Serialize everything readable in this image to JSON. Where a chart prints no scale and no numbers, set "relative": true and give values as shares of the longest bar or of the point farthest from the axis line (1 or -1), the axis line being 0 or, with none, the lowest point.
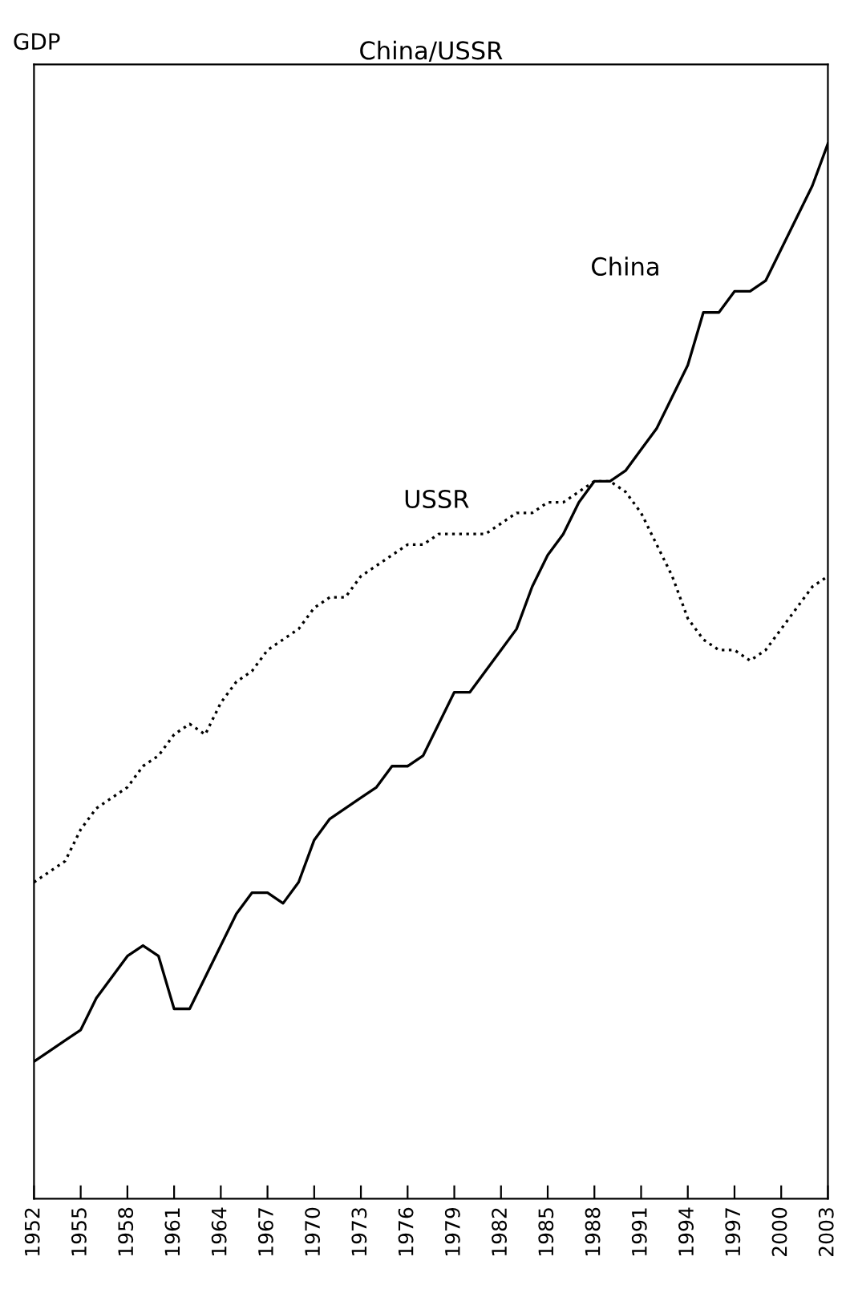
{
  "chart_data": {
    "type": "line",
    "title": "China/USSR",
    "ylabel": "GDP",
    "relative": true,
    "x": [
      1952,
      1953,
      1954,
      1955,
      1956,
      1957,
      1958,
      1959,
      1960,
      1961,
      1962,
      1963,
      1964,
      1965,
      1966,
      1967,
      1968,
      1969,
      1970,
      1971,
      1972,
      1973,
      1974,
      1975,
      1976,
      1977,
      1978,
      1979,
      1980,
      1981,
      1982,
      1983,
      1984,
      1985,
      1986,
      1987,
      1988,
      1989,
      1990,
      1991,
      1992,
      1993,
      1994,
      1995,
      1996,
      1997,
      1998,
      1999,
      2000,
      2001,
      2002,
      2003
    ],
    "xlim": [
      1952,
      2003
    ],
    "xticks": [
      1952,
      1955,
      1958,
      1961,
      1964,
      1967,
      1970,
      1973,
      1976,
      1979,
      1982,
      1985,
      1988,
      1991,
      1994,
      1997,
      2000,
      2003
    ],
    "grid": false,
    "legend": false,
    "series": [
      {
        "name": "China",
        "color": "#000000",
        "line_style": "solid",
        "values": [
          0.13,
          0.14,
          0.15,
          0.16,
          0.19,
          0.21,
          0.23,
          0.24,
          0.23,
          0.18,
          0.18,
          0.21,
          0.24,
          0.27,
          0.29,
          0.29,
          0.28,
          0.3,
          0.34,
          0.36,
          0.37,
          0.38,
          0.39,
          0.41,
          0.41,
          0.42,
          0.45,
          0.48,
          0.48,
          0.5,
          0.52,
          0.54,
          0.58,
          0.61,
          0.63,
          0.66,
          0.68,
          0.68,
          0.69,
          0.71,
          0.73,
          0.76,
          0.79,
          0.84,
          0.84,
          0.86,
          0.86,
          0.87,
          0.9,
          0.93,
          0.96,
          1.0
        ]
      },
      {
        "name": "USSR",
        "color": "#000000",
        "line_style": "dotted",
        "values": [
          0.3,
          0.31,
          0.32,
          0.35,
          0.37,
          0.38,
          0.39,
          0.41,
          0.42,
          0.44,
          0.45,
          0.44,
          0.47,
          0.49,
          0.5,
          0.52,
          0.53,
          0.54,
          0.56,
          0.57,
          0.57,
          0.59,
          0.6,
          0.61,
          0.62,
          0.62,
          0.63,
          0.63,
          0.63,
          0.63,
          0.64,
          0.65,
          0.65,
          0.66,
          0.66,
          0.67,
          0.68,
          0.68,
          0.67,
          0.65,
          0.62,
          0.59,
          0.55,
          0.53,
          0.52,
          0.52,
          0.51,
          0.52,
          0.54,
          0.56,
          0.58,
          0.59
        ]
      }
    ]
  }
}
